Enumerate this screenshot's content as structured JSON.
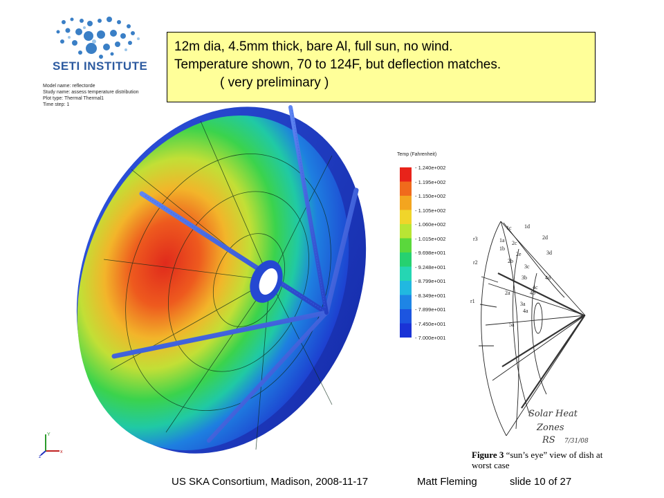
{
  "logo": {
    "text": "SETI INSTITUTE"
  },
  "model_info": {
    "model_name": "Model name: reflectorde",
    "study_name": "Study name: assess temperature distribution",
    "plot_type": "Plot type: Thermal Thermal1",
    "time_step": "Time step: 1"
  },
  "callout": {
    "line1": "12m dia, 4.5mm thick, bare Al, full sun, no wind.",
    "line2": "Temperature shown, 70 to 124F, but deflection matches.",
    "line3": "( very preliminary )"
  },
  "legend": {
    "title": "Temp (Fahrenheit)",
    "values": [
      "1.240e+002",
      "1.195e+002",
      "1.150e+002",
      "1.105e+002",
      "1.060e+002",
      "1.015e+002",
      "9.698e+001",
      "9.248e+001",
      "8.799e+001",
      "8.349e+001",
      "7.899e+001",
      "7.450e+001",
      "7.000e+001"
    ],
    "colors": [
      "#e8231a",
      "#f06a1c",
      "#f3a51f",
      "#f0d52a",
      "#b8e534",
      "#5ad83c",
      "#26d170",
      "#25d6b3",
      "#21b8e0",
      "#1e85e5",
      "#1c55e0",
      "#1a33d6"
    ]
  },
  "sketch": {
    "labels": [
      "1c",
      "1d",
      "2d",
      "1a",
      "1b",
      "2c",
      "2e",
      "r3",
      "3d",
      "2b",
      "3c",
      "r2",
      "3b",
      "4c",
      "4d",
      "2a",
      "4b",
      "r1",
      "3a",
      "4a",
      "5a"
    ],
    "handwritten": [
      "Solar Heat",
      "Zones",
      "RS",
      "7/31/08"
    ]
  },
  "caption": {
    "figure": "Figure 3",
    "text": " “sun’s eye” view of dish at worst case"
  },
  "axes_labels": {
    "x": "x",
    "y": "Y",
    "z": "z"
  },
  "footer": {
    "conference": "US SKA Consortium, Madison, 2008-11-17",
    "author": "Matt Fleming",
    "slide": "slide 10 of 27"
  }
}
